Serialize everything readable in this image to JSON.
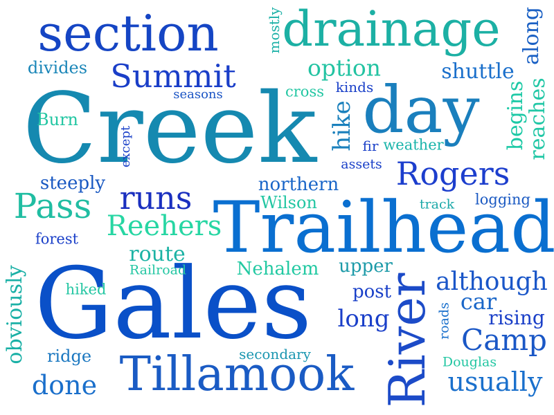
{
  "words": [
    {
      "text": "Creek",
      "color": "#1589b0",
      "rotated": false
    },
    {
      "text": "Trailhead",
      "color": "#0a6fd0",
      "rotated": false
    },
    {
      "text": "Gales",
      "color": "#0a50c8",
      "rotated": false
    },
    {
      "text": "section",
      "color": "#1545c4",
      "rotated": false
    },
    {
      "text": "drainage",
      "color": "#1cb0a4",
      "rotated": false
    },
    {
      "text": "day",
      "color": "#1a7fbd",
      "rotated": false
    },
    {
      "text": "Tillamook",
      "color": "#1a5bc4",
      "rotated": false
    },
    {
      "text": "River",
      "color": "#1c4bc8",
      "rotated": true
    },
    {
      "text": "Summit",
      "color": "#1a3ec8",
      "rotated": false
    },
    {
      "text": "Rogers",
      "color": "#1c3ecd",
      "rotated": false
    },
    {
      "text": "Pass",
      "color": "#20bda2",
      "rotated": false
    },
    {
      "text": "runs",
      "color": "#1a2fbf",
      "rotated": false
    },
    {
      "text": "Reehers",
      "color": "#27d6a3",
      "rotated": false
    },
    {
      "text": "Camp",
      "color": "#1a57c6",
      "rotated": false
    },
    {
      "text": "usually",
      "color": "#1a70cc",
      "rotated": false
    },
    {
      "text": "done",
      "color": "#1a6fcb",
      "rotated": false
    },
    {
      "text": "although",
      "color": "#1a56c8",
      "rotated": false
    },
    {
      "text": "long",
      "color": "#1a3fc9",
      "rotated": false
    },
    {
      "text": "option",
      "color": "#22c3a2",
      "rotated": false
    },
    {
      "text": "shuttle",
      "color": "#1a6fcb",
      "rotated": false
    },
    {
      "text": "route",
      "color": "#1bb2a4",
      "rotated": false
    },
    {
      "text": "northern",
      "color": "#1a66c8",
      "rotated": false
    },
    {
      "text": "obviously",
      "color": "#1ab0a6",
      "rotated": true
    },
    {
      "text": "Nehalem",
      "color": "#22c9a2",
      "rotated": false
    },
    {
      "text": "hike",
      "color": "#1a80bc",
      "rotated": true
    },
    {
      "text": "begins",
      "color": "#1dc9a6",
      "rotated": true
    },
    {
      "text": "along",
      "color": "#1a60c4",
      "rotated": true
    },
    {
      "text": "reaches",
      "color": "#22c7a6",
      "rotated": true
    },
    {
      "text": "car",
      "color": "#1a66c8",
      "rotated": false
    },
    {
      "text": "rising",
      "color": "#1a3fc8",
      "rotated": false
    },
    {
      "text": "steeply",
      "color": "#1a59c2",
      "rotated": false
    },
    {
      "text": "upper",
      "color": "#1c9aa8",
      "rotated": false
    },
    {
      "text": "post",
      "color": "#1a40c8",
      "rotated": false
    },
    {
      "text": "Wilson",
      "color": "#22c6a2",
      "rotated": false
    },
    {
      "text": "divides",
      "color": "#1a86b8",
      "rotated": false
    },
    {
      "text": "Burn",
      "color": "#22c6a2",
      "rotated": false
    },
    {
      "text": "secondary",
      "color": "#1a96b0",
      "rotated": false
    },
    {
      "text": "ridge",
      "color": "#1a77c0",
      "rotated": false
    },
    {
      "text": "Railroad",
      "color": "#22c6a2",
      "rotated": false
    },
    {
      "text": "hiked",
      "color": "#22c6a2",
      "rotated": false
    },
    {
      "text": "forest",
      "color": "#1a3fc8",
      "rotated": false
    },
    {
      "text": "weather",
      "color": "#1ab4aa",
      "rotated": false
    },
    {
      "text": "mostly",
      "color": "#1ab0a6",
      "rotated": true
    },
    {
      "text": "seasons",
      "color": "#1a54c4",
      "rotated": false
    },
    {
      "text": "cross",
      "color": "#22c6a2",
      "rotated": false
    },
    {
      "text": "kinds",
      "color": "#1a40c8",
      "rotated": false
    },
    {
      "text": "except",
      "color": "#1a40c8",
      "rotated": true
    },
    {
      "text": "fir",
      "color": "#1a40c8",
      "rotated": false
    },
    {
      "text": "assets",
      "color": "#1a40c8",
      "rotated": false
    },
    {
      "text": "track",
      "color": "#1aa8a8",
      "rotated": false
    },
    {
      "text": "logging",
      "color": "#1a59c2",
      "rotated": false
    },
    {
      "text": "roads",
      "color": "#1a70cc",
      "rotated": true
    },
    {
      "text": "Douglas",
      "color": "#22c6a2",
      "rotated": false
    }
  ]
}
